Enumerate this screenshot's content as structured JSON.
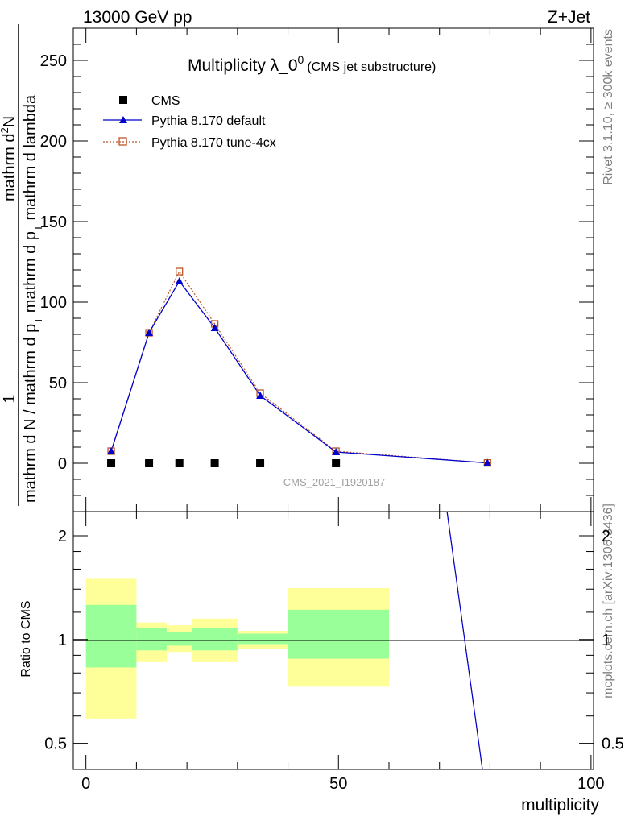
{
  "header": {
    "left": "13000 GeV pp",
    "right": "Z+Jet"
  },
  "side_labels": {
    "rivet": "Rivet 3.1.10, ≥ 300k events",
    "mcplots": "mcplots.cern.ch [arXiv:1306.3436]"
  },
  "watermark": "CMS_2021_I1920187",
  "main_plot": {
    "title_main": "Multiplicity λ_0",
    "title_sup": "0",
    "title_sub": "(CMS jet substructure)",
    "ylabel_top": "1",
    "ylabel_denominator": "mathrm d N / mathrm d p",
    "ylabel_numerator": "mathrm d",
    "ylabel_numerator_sup": "2",
    "ylabel_numerator_rest": "N",
    "ylabel_denominator2": "mathrm d p",
    "ylabel_denominator2_sub": "T",
    "ylabel_denominator2_rest": "mathrm d lambda",
    "legend": {
      "cms": "CMS",
      "default": "Pythia 8.170 default",
      "tune": "Pythia 8.170 tune-4cx"
    },
    "y_ticks": [
      "0",
      "50",
      "100",
      "150",
      "200",
      "250"
    ]
  },
  "ratio_plot": {
    "ylabel": "Ratio to CMS",
    "y_ticks": [
      "0.5",
      "1",
      "2"
    ]
  },
  "x_axis": {
    "label": "multiplicity",
    "ticks": [
      "0",
      "50",
      "100"
    ]
  },
  "colors": {
    "cms": "#000000",
    "default": "#0000cc",
    "tune": "#c0562a",
    "band_inner": "#99ff99",
    "band_outer": "#ffff99"
  },
  "chart_data": {
    "type": "line",
    "xlim": [
      -2.5,
      100.5
    ],
    "ylim": [
      -30,
      270
    ],
    "ratio_ylim": [
      0.42,
      2.35
    ],
    "x": [
      5,
      12.5,
      18.5,
      25.5,
      34.5,
      49.5,
      79.5
    ],
    "series": [
      {
        "name": "CMS",
        "values": [
          0,
          0,
          0,
          0,
          0,
          0,
          null
        ]
      },
      {
        "name": "Pythia 8.170 default",
        "values": [
          7.5,
          81,
          113,
          84,
          42,
          7,
          0.2
        ]
      },
      {
        "name": "Pythia 8.170 tune-4cx",
        "values": [
          7.5,
          81,
          119,
          86.5,
          43.5,
          7.5,
          0.2
        ]
      }
    ],
    "ratio_bands": [
      {
        "x_from": 0,
        "x_to": 10,
        "inner": [
          0.83,
          1.26
        ],
        "outer": [
          0.59,
          1.5
        ]
      },
      {
        "x_from": 10,
        "x_to": 16,
        "inner": [
          0.93,
          1.08
        ],
        "outer": [
          0.86,
          1.12
        ]
      },
      {
        "x_from": 16,
        "x_to": 21,
        "inner": [
          0.96,
          1.05
        ],
        "outer": [
          0.92,
          1.1
        ]
      },
      {
        "x_from": 21,
        "x_to": 30,
        "inner": [
          0.93,
          1.08
        ],
        "outer": [
          0.86,
          1.15
        ]
      },
      {
        "x_from": 30,
        "x_to": 40,
        "inner": [
          0.97,
          1.04
        ],
        "outer": [
          0.94,
          1.06
        ]
      },
      {
        "x_from": 40,
        "x_to": 60,
        "inner": [
          0.88,
          1.22
        ],
        "outer": [
          0.73,
          1.41
        ]
      }
    ],
    "ratio_line": {
      "x": [
        71.5,
        78.5
      ],
      "y": [
        2.4,
        0.4
      ]
    }
  }
}
